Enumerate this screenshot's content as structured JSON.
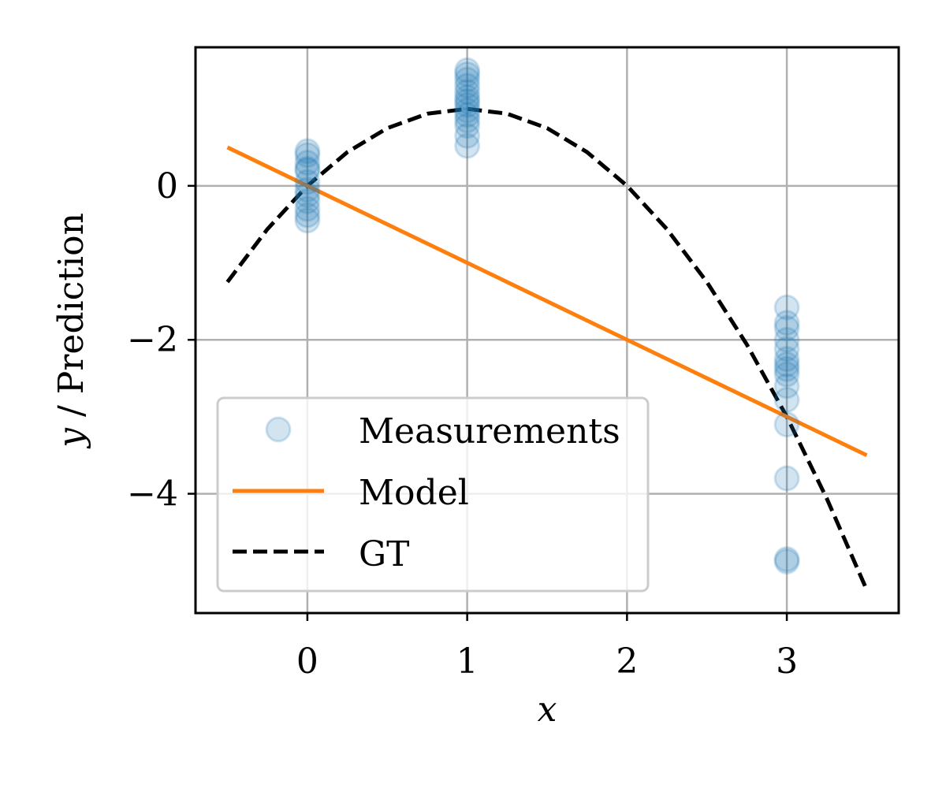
{
  "chart_data": {
    "type": "scatter",
    "title": "",
    "xlabel": "x",
    "ylabel_parts": [
      "y",
      " / Prediction"
    ],
    "xlim": [
      -0.7,
      3.7
    ],
    "ylim": [
      -5.55,
      1.8
    ],
    "xticks": [
      0,
      1,
      2,
      3
    ],
    "yticks": [
      0,
      -2,
      -4
    ],
    "xtick_labels": [
      "0",
      "1",
      "2",
      "3"
    ],
    "ytick_labels": [
      "0",
      "−2",
      "−4"
    ],
    "grid": true,
    "legend_position": "lower-left",
    "series": [
      {
        "name": "Measurements",
        "kind": "scatter",
        "color": "#1f77b4",
        "points": [
          {
            "x": 0,
            "y": 0.45
          },
          {
            "x": 0,
            "y": 0.4
          },
          {
            "x": 0,
            "y": 0.3
          },
          {
            "x": 0,
            "y": 0.22
          },
          {
            "x": 0,
            "y": 0.2
          },
          {
            "x": 0,
            "y": 0.05
          },
          {
            "x": 0,
            "y": -0.05
          },
          {
            "x": 0,
            "y": -0.12
          },
          {
            "x": 0,
            "y": -0.2
          },
          {
            "x": 0,
            "y": -0.3
          },
          {
            "x": 0,
            "y": -0.38
          },
          {
            "x": 0,
            "y": -0.45
          },
          {
            "x": 1,
            "y": 1.5
          },
          {
            "x": 1,
            "y": 1.45
          },
          {
            "x": 1,
            "y": 1.38
          },
          {
            "x": 1,
            "y": 1.3
          },
          {
            "x": 1,
            "y": 1.22
          },
          {
            "x": 1,
            "y": 1.15
          },
          {
            "x": 1,
            "y": 1.1
          },
          {
            "x": 1,
            "y": 1.05
          },
          {
            "x": 1,
            "y": 0.98
          },
          {
            "x": 1,
            "y": 0.92
          },
          {
            "x": 1,
            "y": 0.85
          },
          {
            "x": 1,
            "y": 0.78
          },
          {
            "x": 1,
            "y": 0.65
          },
          {
            "x": 1,
            "y": 0.52
          },
          {
            "x": 3,
            "y": -1.58
          },
          {
            "x": 3,
            "y": -1.78
          },
          {
            "x": 3,
            "y": -1.85
          },
          {
            "x": 3,
            "y": -2.0
          },
          {
            "x": 3,
            "y": -2.12
          },
          {
            "x": 3,
            "y": -2.25
          },
          {
            "x": 3,
            "y": -2.32
          },
          {
            "x": 3,
            "y": -2.38
          },
          {
            "x": 3,
            "y": -2.45
          },
          {
            "x": 3,
            "y": -2.6
          },
          {
            "x": 3,
            "y": -2.78
          },
          {
            "x": 3,
            "y": -3.1
          },
          {
            "x": 3,
            "y": -3.8
          },
          {
            "x": 3,
            "y": -4.85
          },
          {
            "x": 3,
            "y": -4.88
          }
        ]
      },
      {
        "name": "Model",
        "kind": "line",
        "color": "#ff7f0e",
        "points": [
          {
            "x": -0.5,
            "y": 0.5
          },
          {
            "x": 3.5,
            "y": -3.5
          }
        ]
      },
      {
        "name": "GT",
        "kind": "dashed-line",
        "color": "#000000",
        "points": [
          {
            "x": -0.5,
            "y": -1.25
          },
          {
            "x": -0.25,
            "y": -0.5625
          },
          {
            "x": 0,
            "y": 0
          },
          {
            "x": 0.25,
            "y": 0.4375
          },
          {
            "x": 0.5,
            "y": 0.75
          },
          {
            "x": 0.75,
            "y": 0.9375
          },
          {
            "x": 1,
            "y": 1
          },
          {
            "x": 1.25,
            "y": 0.9375
          },
          {
            "x": 1.5,
            "y": 0.75
          },
          {
            "x": 1.75,
            "y": 0.4375
          },
          {
            "x": 2,
            "y": 0
          },
          {
            "x": 2.25,
            "y": -0.5625
          },
          {
            "x": 2.5,
            "y": -1.25
          },
          {
            "x": 2.75,
            "y": -2.0625
          },
          {
            "x": 3,
            "y": -3
          },
          {
            "x": 3.25,
            "y": -4.0625
          },
          {
            "x": 3.5,
            "y": -5.25
          }
        ]
      }
    ],
    "legend": [
      "Measurements",
      "Model",
      "GT"
    ]
  }
}
